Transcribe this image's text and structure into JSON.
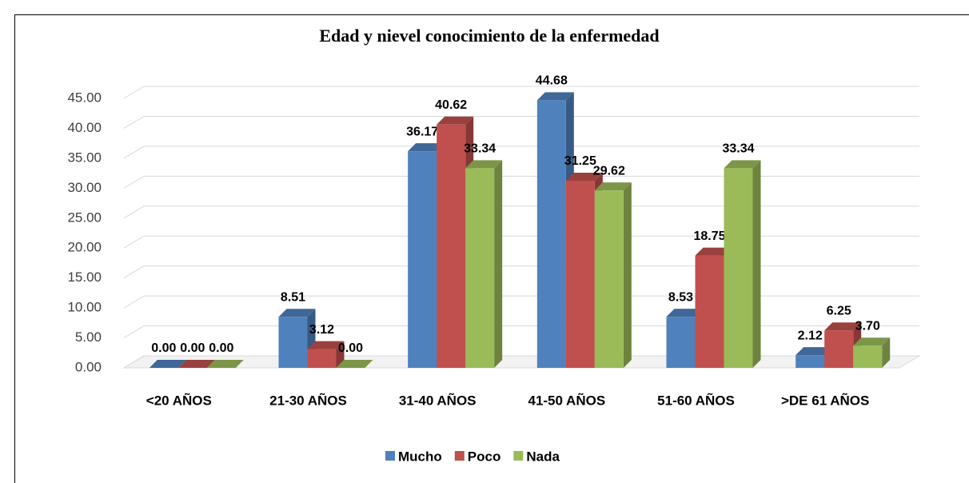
{
  "chart_data": {
    "type": "bar3d",
    "title": "Edad y nievel conocimiento de la enfermedad",
    "categories": [
      "<20 AÑOS",
      "21-30 AÑOS",
      "31-40 AÑOS",
      "41-50 AÑOS",
      "51-60 AÑOS",
      ">DE 61 AÑOS"
    ],
    "series": [
      {
        "name": "Mucho",
        "color": "#4f81bd",
        "values": [
          0,
          8.51,
          36.17,
          44.68,
          8.53,
          2.12
        ],
        "value_labels": [
          "0.00",
          "8.51",
          "36.17",
          "44.68",
          "8.53",
          "2.12"
        ]
      },
      {
        "name": "Poco",
        "color": "#c0504d",
        "values": [
          0,
          3.12,
          40.62,
          31.25,
          18.75,
          6.25
        ],
        "value_labels": [
          "0.00",
          "3.12",
          "40.62",
          "31.25",
          "18.75",
          "6.25"
        ]
      },
      {
        "name": "Nada",
        "color": "#9bbb59",
        "values": [
          0,
          0,
          33.34,
          29.62,
          33.34,
          3.7
        ],
        "value_labels": [
          "0.00",
          "0.00",
          "33.34",
          "29.62",
          "33.34",
          "3.70"
        ]
      }
    ],
    "ylim": [
      0,
      45
    ],
    "yticks": [
      {
        "value": 0,
        "label": "0.00"
      },
      {
        "value": 5,
        "label": "5.00"
      },
      {
        "value": 10,
        "label": "10.00"
      },
      {
        "value": 15,
        "label": "15.00"
      },
      {
        "value": 20,
        "label": "20.00"
      },
      {
        "value": 25,
        "label": "25.00"
      },
      {
        "value": 30,
        "label": "30.00"
      },
      {
        "value": 35,
        "label": "35.00"
      },
      {
        "value": 40,
        "label": "40.00"
      },
      {
        "value": 45,
        "label": "45.00"
      }
    ],
    "grid": true,
    "legend": "bottom"
  }
}
